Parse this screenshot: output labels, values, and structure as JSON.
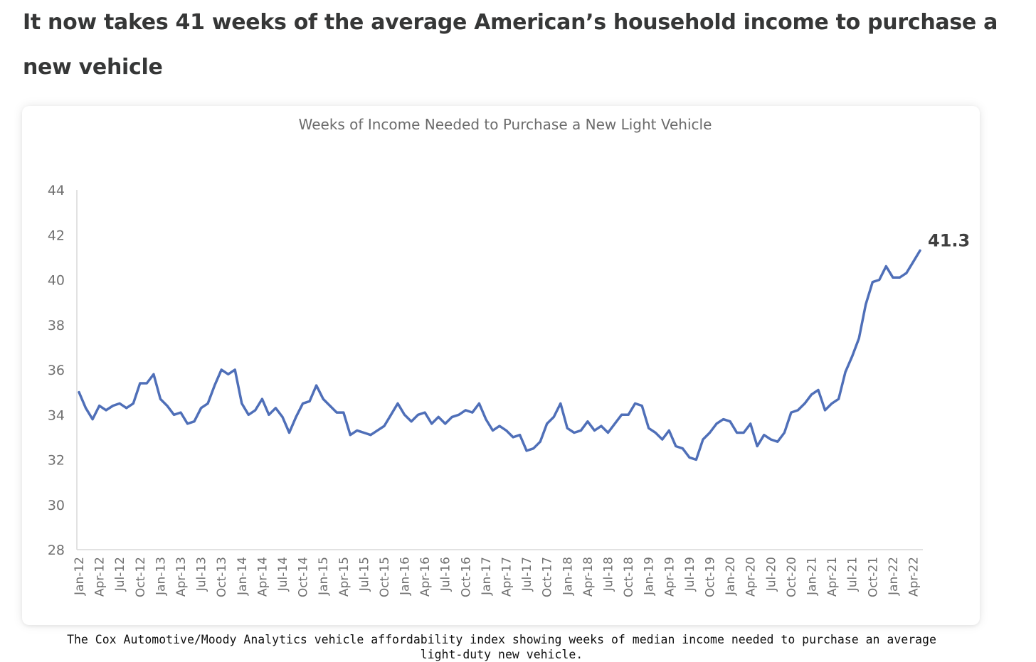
{
  "article": {
    "headline": "It now takes 41 weeks of the average American’s household income to purchase a new vehicle",
    "caption": "The Cox Automotive/Moody Analytics vehicle affordability index showing weeks of median income needed to purchase an average light-duty new vehicle."
  },
  "chart_data": {
    "type": "line",
    "title": "Weeks of Income Needed to Purchase a New Light Vehicle",
    "xlabel": "",
    "ylabel": "",
    "ylim": [
      28,
      44
    ],
    "yticks": [
      28,
      30,
      32,
      34,
      36,
      38,
      40,
      42,
      44
    ],
    "grid": false,
    "end_label": "41.3",
    "x_tick_labels": [
      "Jan-12",
      "Apr-12",
      "Jul-12",
      "Oct-12",
      "Jan-13",
      "Apr-13",
      "Jul-13",
      "Oct-13",
      "Jan-14",
      "Apr-14",
      "Jul-14",
      "Oct-14",
      "Jan-15",
      "Apr-15",
      "Jul-15",
      "Oct-15",
      "Jan-16",
      "Apr-16",
      "Jul-16",
      "Oct-16",
      "Jan-17",
      "Apr-17",
      "Jul-17",
      "Oct-17",
      "Jan-18",
      "Apr-18",
      "Jul-18",
      "Oct-18",
      "Jan-19",
      "Apr-19",
      "Jul-19",
      "Oct-19",
      "Jan-20",
      "Apr-20",
      "Jul-20",
      "Oct-20",
      "Jan-21",
      "Apr-21",
      "Jul-21",
      "Oct-21",
      "Jan-22",
      "Apr-22"
    ],
    "series": [
      {
        "name": "Weeks of income",
        "color": "#4f6fb8",
        "values": [
          35.0,
          34.3,
          33.8,
          34.4,
          34.2,
          34.4,
          34.5,
          34.3,
          34.5,
          35.4,
          35.4,
          35.8,
          34.7,
          34.4,
          34.0,
          34.1,
          33.6,
          33.7,
          34.3,
          34.5,
          35.3,
          36.0,
          35.8,
          36.0,
          34.5,
          34.0,
          34.2,
          34.7,
          34.0,
          34.3,
          33.9,
          33.2,
          33.9,
          34.5,
          34.6,
          35.3,
          34.7,
          34.4,
          34.1,
          34.1,
          33.1,
          33.3,
          33.2,
          33.1,
          33.3,
          33.5,
          34.0,
          34.5,
          34.0,
          33.7,
          34.0,
          34.1,
          33.6,
          33.9,
          33.6,
          33.9,
          34.0,
          34.2,
          34.1,
          34.5,
          33.8,
          33.3,
          33.5,
          33.3,
          33.0,
          33.1,
          32.4,
          32.5,
          32.8,
          33.6,
          33.9,
          34.5,
          33.4,
          33.2,
          33.3,
          33.7,
          33.3,
          33.5,
          33.2,
          33.6,
          34.0,
          34.0,
          34.5,
          34.4,
          33.4,
          33.2,
          32.9,
          33.3,
          32.6,
          32.5,
          32.1,
          32.0,
          32.9,
          33.2,
          33.6,
          33.8,
          33.7,
          33.2,
          33.2,
          33.6,
          32.6,
          33.1,
          32.9,
          32.8,
          33.2,
          34.1,
          34.2,
          34.5,
          34.9,
          35.1,
          34.2,
          34.5,
          34.7,
          35.9,
          36.6,
          37.4,
          38.9,
          39.9,
          40.0,
          40.6,
          40.1,
          40.1,
          40.3,
          40.8,
          41.3
        ]
      }
    ]
  }
}
